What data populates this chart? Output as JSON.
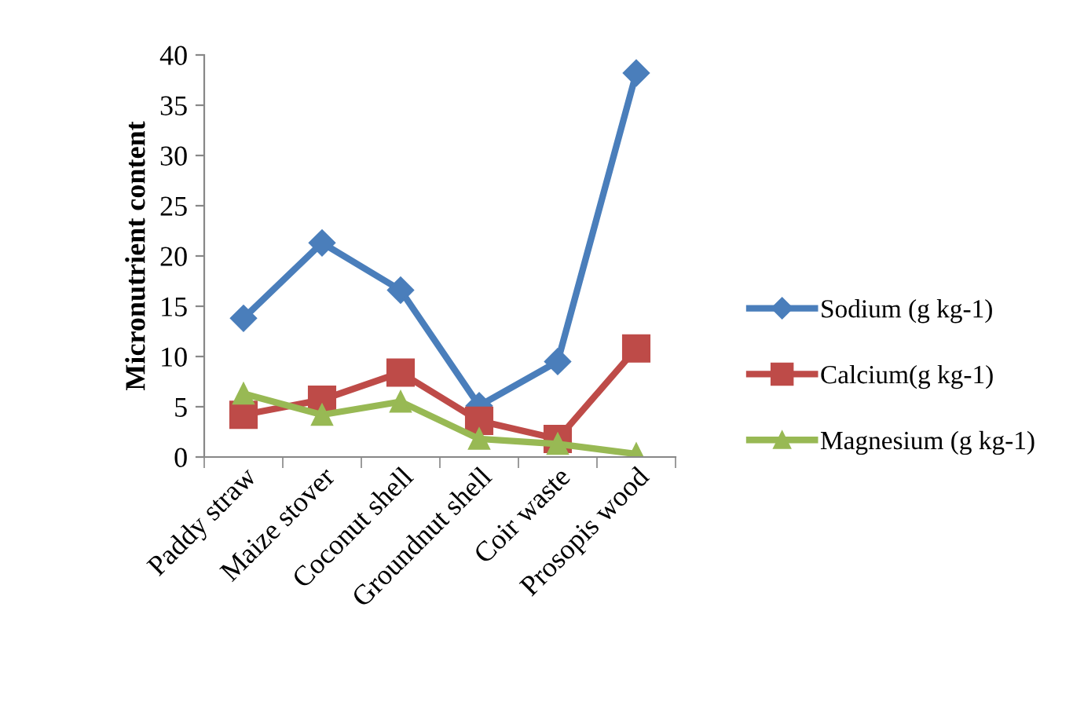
{
  "chart_data": {
    "type": "line",
    "ylabel": "Micronutrient content",
    "categories": [
      "Paddy straw",
      "Maize stover",
      "Coconut shell",
      "Groundnut shell",
      "Coir waste",
      "Prosopis wood"
    ],
    "series": [
      {
        "name": "Sodium (g kg-1)",
        "color": "#4a7ebb",
        "marker": "diamond",
        "values": [
          13.8,
          21.3,
          16.6,
          5.1,
          9.5,
          38.2
        ]
      },
      {
        "name": "Calcium(g kg-1)",
        "color": "#be4b48",
        "marker": "square",
        "values": [
          4.2,
          5.7,
          8.4,
          3.6,
          1.8,
          10.8
        ]
      },
      {
        "name": "Magnesium (g kg-1)",
        "color": "#98b954",
        "marker": "triangle",
        "values": [
          6.3,
          4.2,
          5.5,
          1.8,
          1.3,
          0.3
        ]
      }
    ],
    "ylim": [
      0,
      40
    ],
    "yticks": [
      0,
      5,
      10,
      15,
      20,
      25,
      30,
      35,
      40
    ],
    "grid": false,
    "legend": "right",
    "line_style": "solid"
  }
}
